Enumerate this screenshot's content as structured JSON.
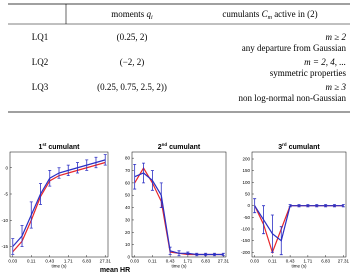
{
  "table": {
    "header": {
      "moments": {
        "text": "moments",
        "var": "q",
        "sub": "i"
      },
      "cumulants": {
        "text": "cumulants",
        "var": "C",
        "sub": "m",
        "rest": "active in (2)"
      }
    },
    "rows": [
      {
        "label": "LQ1",
        "moments": "(0.25, 2)",
        "condition": "m ≥ 2",
        "description": "any departure from Gaussian"
      },
      {
        "label": "LQ2",
        "moments": "(−2, 2)",
        "condition": "m = 2, 4, ...",
        "description": "symmetric properties"
      },
      {
        "label": "LQ3",
        "moments": "(0.25, 0.75, 2.5, 2))",
        "condition": "m ≥ 3",
        "description": "non log-normal non-Gaussian"
      }
    ]
  },
  "chart_data": [
    {
      "type": "line",
      "title_number": "1",
      "title_superscript": "st",
      "title_text": "cumulant",
      "xlabel": "time (s)",
      "x": [
        0,
        1,
        2,
        3,
        4,
        5,
        6,
        7,
        8,
        9,
        10
      ],
      "xlim": [
        -0.3,
        10.3
      ],
      "xticks": [
        {
          "value": 0,
          "label": "0.03"
        },
        {
          "value": 2,
          "label": "0.11"
        },
        {
          "value": 4,
          "label": "0.43"
        },
        {
          "value": 6,
          "label": "1.71"
        },
        {
          "value": 8,
          "label": "6.83"
        },
        {
          "value": 10,
          "label": "27.31"
        }
      ],
      "ylim": [
        -17,
        3
      ],
      "yticks": [
        -15,
        -10,
        -5,
        0
      ],
      "series": [
        {
          "color": "#e8262a",
          "values": [
            -16,
            -14,
            -10,
            -5.5,
            -2.5,
            -1.5,
            -1,
            -0.5,
            0,
            0.5,
            1
          ]
        },
        {
          "color": "#2b2fc4",
          "values": [
            -15,
            -13,
            -9,
            -5,
            -2,
            -1,
            -0.5,
            0,
            0.5,
            1,
            1.5
          ],
          "errors": [
            1.5,
            2,
            2.5,
            2,
            1.5,
            1,
            1,
            1,
            1,
            1,
            1
          ]
        }
      ]
    },
    {
      "type": "line",
      "title_number": "2",
      "title_superscript": "nd",
      "title_text": "cumulant",
      "xlabel": "time (s)",
      "x": [
        0,
        1,
        2,
        3,
        4,
        5,
        6,
        7,
        8,
        9,
        10
      ],
      "xlim": [
        -0.3,
        10.3
      ],
      "xticks": [
        {
          "value": 0,
          "label": "0.03"
        },
        {
          "value": 2,
          "label": "0.11"
        },
        {
          "value": 4,
          "label": "0.43"
        },
        {
          "value": 6,
          "label": "1.71"
        },
        {
          "value": 8,
          "label": "6.83"
        },
        {
          "value": 10,
          "label": "27.31"
        }
      ],
      "ylim": [
        0,
        85
      ],
      "yticks": [
        0,
        10,
        20,
        30,
        40,
        50,
        60,
        70,
        80
      ],
      "series": [
        {
          "color": "#e8262a",
          "values": [
            60,
            72,
            60,
            45,
            4,
            3,
            2,
            2,
            2,
            2,
            2
          ]
        },
        {
          "color": "#2b2fc4",
          "values": [
            65,
            68,
            62,
            50,
            5,
            3,
            3,
            2,
            2,
            2,
            2
          ],
          "errors": [
            10,
            8,
            8,
            10,
            3,
            2,
            1,
            1,
            1,
            1,
            1
          ]
        }
      ]
    },
    {
      "type": "line",
      "title_number": "3",
      "title_superscript": "rd",
      "title_text": "cumulant",
      "xlabel": "time (s)",
      "x": [
        0,
        1,
        2,
        3,
        4,
        5,
        6,
        7,
        8,
        9,
        10
      ],
      "xlim": [
        -0.3,
        10.3
      ],
      "xticks": [
        {
          "value": 0,
          "label": "0.03"
        },
        {
          "value": 2,
          "label": "0.11"
        },
        {
          "value": 4,
          "label": "0.43"
        },
        {
          "value": 6,
          "label": "1.71"
        },
        {
          "value": 8,
          "label": "6.83"
        },
        {
          "value": 10,
          "label": "27.31"
        }
      ],
      "ylim": [
        -220,
        230
      ],
      "yticks": [
        -200,
        -150,
        -100,
        -50,
        0,
        50,
        100,
        150,
        200
      ],
      "series": [
        {
          "color": "#e8262a",
          "values": [
            0,
            -80,
            -200,
            -100,
            0,
            0,
            0,
            0,
            0,
            0,
            0
          ]
        },
        {
          "color": "#2b2fc4",
          "values": [
            0,
            -60,
            -120,
            -150,
            0,
            0,
            0,
            0,
            0,
            0,
            0
          ],
          "errors": [
            30,
            60,
            80,
            60,
            5,
            5,
            5,
            5,
            5,
            5,
            5
          ]
        }
      ]
    }
  ],
  "caption": "mean HR"
}
